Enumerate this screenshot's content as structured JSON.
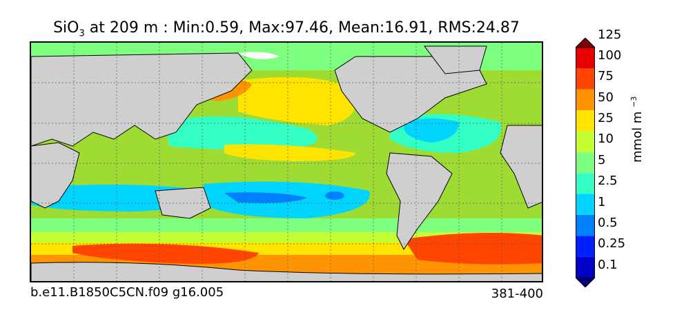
{
  "title": {
    "prefix": "SiO",
    "subscript": "3",
    "rest": " at 209 m : Min:0.59, Max:97.46, Mean:16.91, RMS:24.87"
  },
  "footer": {
    "case_name": "b.e11.B1850C5CN.f09 g16.005",
    "years": "381-400"
  },
  "colorbar": {
    "unit_base": "mmol m",
    "unit_exp": "−3",
    "levels": [
      "0.1",
      "0.25",
      "0.5",
      "1",
      "2.5",
      "5",
      "10",
      "25",
      "50",
      "75",
      "100",
      "125"
    ],
    "colors": [
      "#00007f",
      "#0000c8",
      "#0020ff",
      "#0080ff",
      "#00d4ff",
      "#33ffc4",
      "#7fff7f",
      "#c4ff33",
      "#ffe400",
      "#ff9400",
      "#ff4500",
      "#e80000",
      "#7f0000"
    ]
  },
  "map": {
    "colors": {
      "land": "#cfcfcf",
      "sea_ice": "#ffffff",
      "coast": "#000000"
    }
  }
}
